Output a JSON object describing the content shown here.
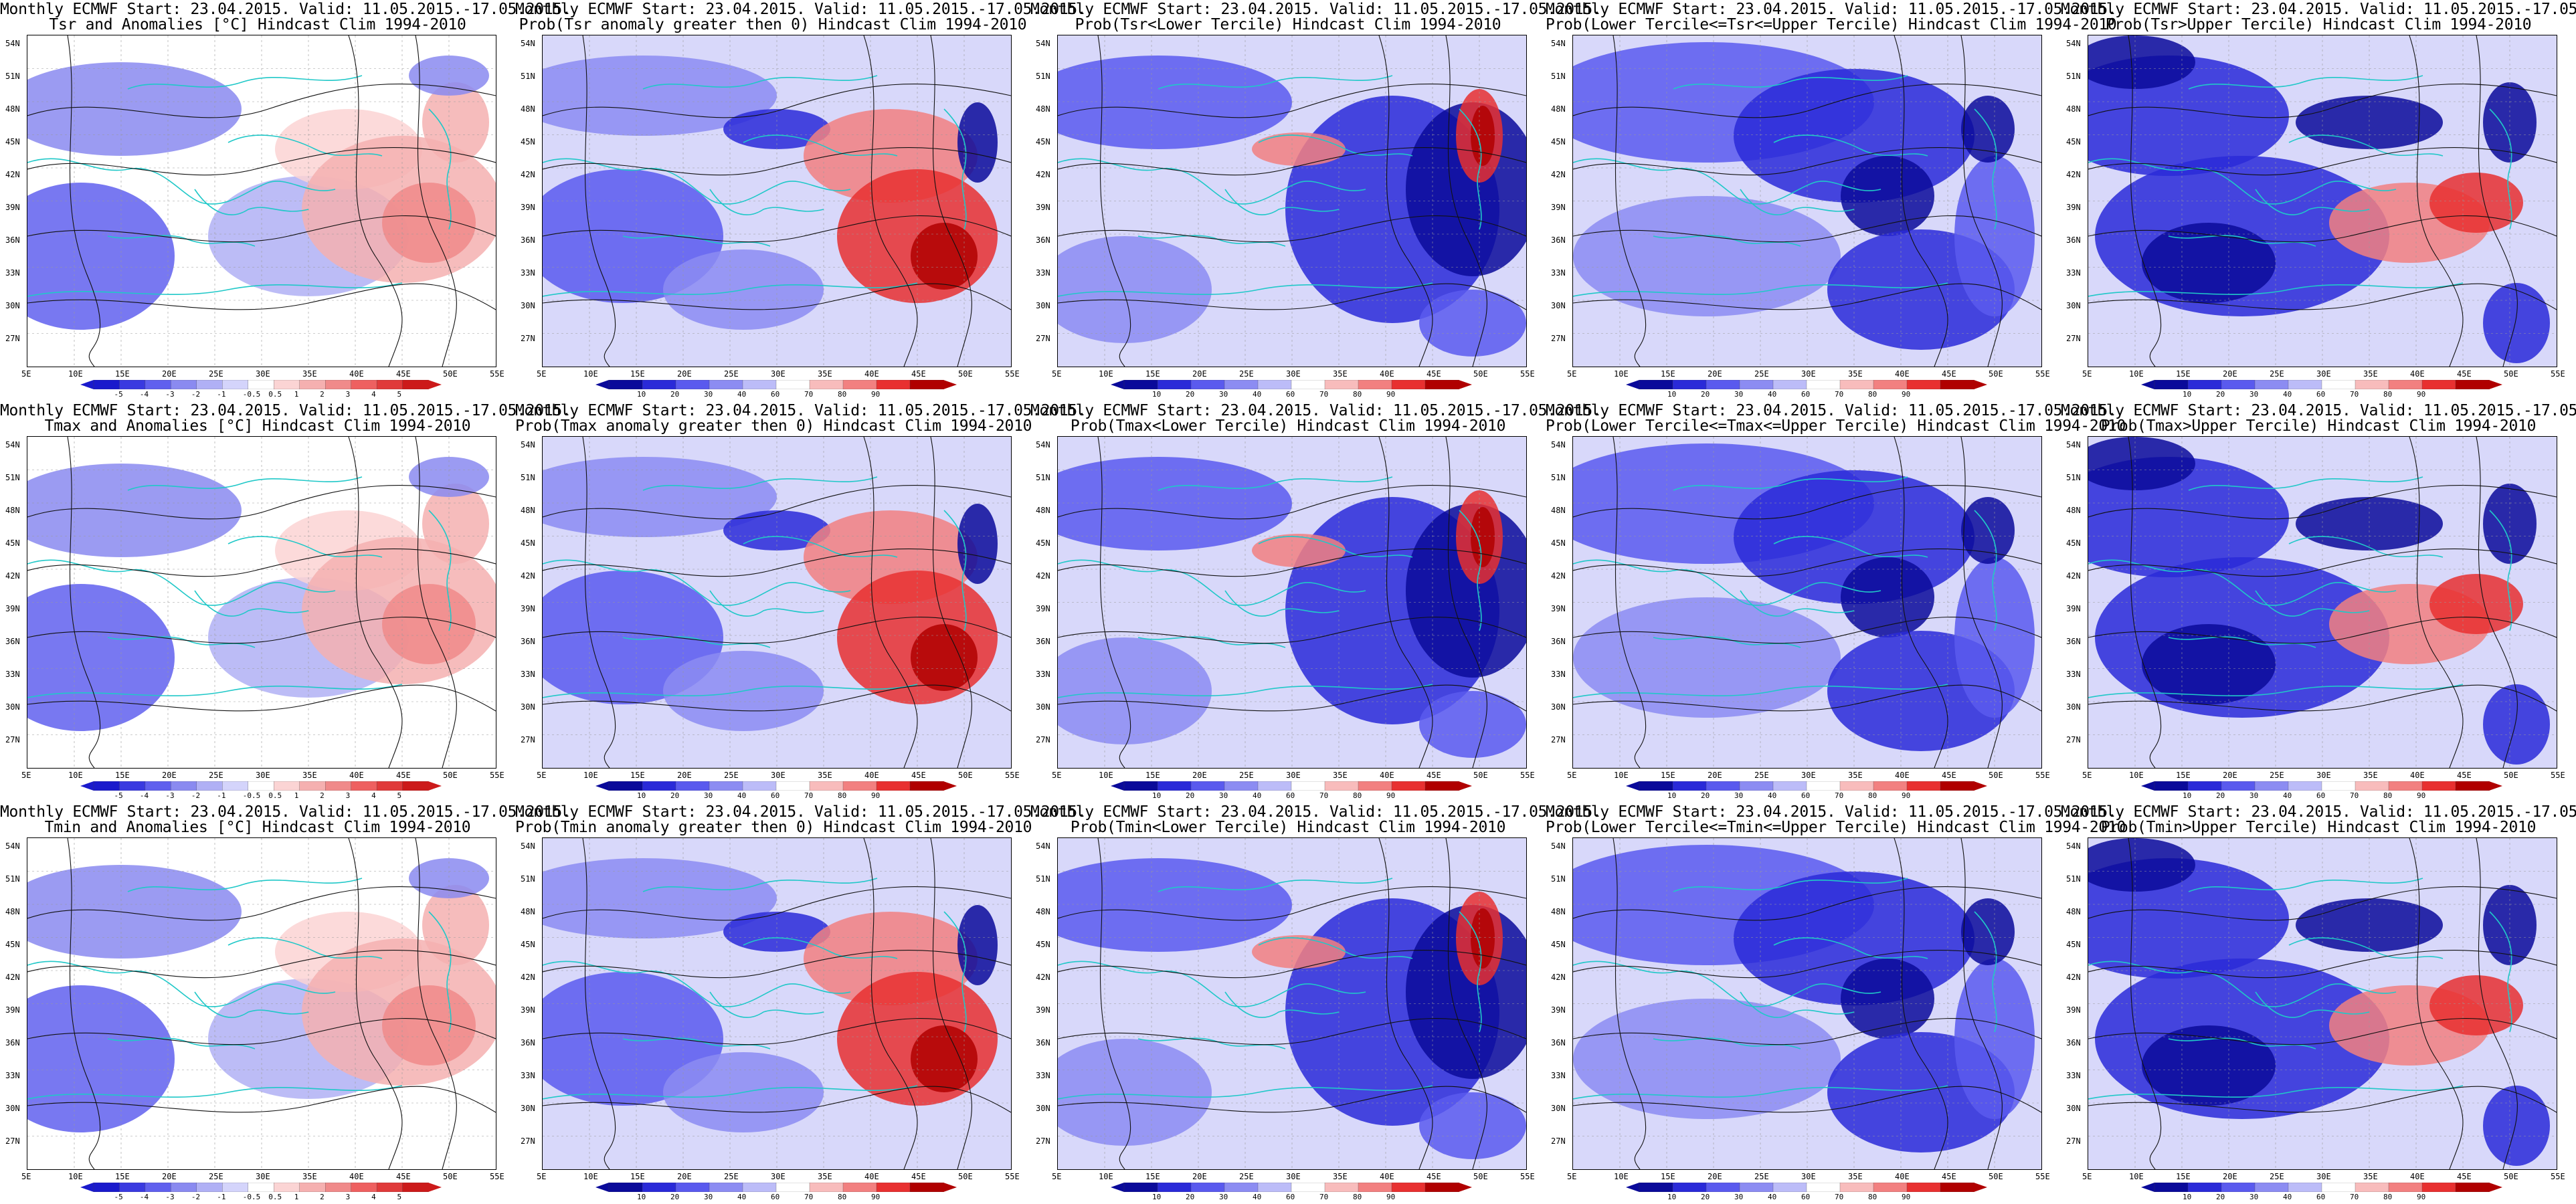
{
  "figure": {
    "title_line1": "Monthly ECMWF Start: 23.04.2015. Valid: 11.05.2015.-17.05.2015.",
    "lat_labels": [
      "54N",
      "51N",
      "48N",
      "45N",
      "42N",
      "39N",
      "36N",
      "33N",
      "30N",
      "27N"
    ],
    "lon_labels": [
      "5E",
      "10E",
      "15E",
      "20E",
      "25E",
      "30E",
      "35E",
      "40E",
      "45E",
      "50E",
      "55E"
    ],
    "colorbars": {
      "anomaly": {
        "labels": [
          "-5",
          "-4",
          "-3",
          "-2",
          "-1",
          "-0.5",
          "0.5",
          "1",
          "2",
          "3",
          "4",
          "5"
        ],
        "colors": [
          "#1a1acc",
          "#3a3ae0",
          "#6060ee",
          "#8a8af0",
          "#b0b0f5",
          "#d4d4fb",
          "#ffffff",
          "#fbd4d4",
          "#f5b0b0",
          "#f08a8a",
          "#ee6060",
          "#e03a3a",
          "#cc1a1a"
        ]
      },
      "probability": {
        "labels": [
          "10",
          "20",
          "30",
          "40",
          "60",
          "70",
          "80",
          "90"
        ],
        "colors": [
          "#0a0a9a",
          "#2a2ad8",
          "#5a5aee",
          "#8c8cf2",
          "#bcbcf8",
          "#ffffff",
          "#f8bcbc",
          "#f28080",
          "#e83030",
          "#b00000"
        ]
      }
    },
    "panels": [
      {
        "title": "Tsr and Anomalies [°C] Hindcast Clim 1994-2010",
        "type": "anomaly"
      },
      {
        "title": "Prob(Tsr anomaly greater then 0) Hindcast Clim 1994-2010",
        "type": "prob_gt0"
      },
      {
        "title": "Prob(Tsr<Lower Tercile) Hindcast Clim 1994-2010",
        "type": "prob_lower"
      },
      {
        "title": "Prob(Lower Tercile<=Tsr<=Upper Tercile) Hindcast Clim 1994-2010",
        "type": "prob_middle"
      },
      {
        "title": "Prob(Tsr>Upper Tercile) Hindcast Clim 1994-2010",
        "type": "prob_upper"
      },
      {
        "title": "Tmax and Anomalies [°C] Hindcast Clim 1994-2010",
        "type": "anomaly"
      },
      {
        "title": "Prob(Tmax anomaly greater then 0) Hindcast Clim 1994-2010",
        "type": "prob_gt0"
      },
      {
        "title": "Prob(Tmax<Lower Tercile) Hindcast Clim 1994-2010",
        "type": "prob_lower"
      },
      {
        "title": "Prob(Lower Tercile<=Tmax<=Upper Tercile) Hindcast Clim 1994-2010",
        "type": "prob_middle"
      },
      {
        "title": "Prob(Tmax>Upper Tercile) Hindcast Clim 1994-2010",
        "type": "prob_upper"
      },
      {
        "title": "Tmin and Anomalies [°C] Hindcast Clim 1994-2010",
        "type": "anomaly"
      },
      {
        "title": "Prob(Tmin anomaly greater then 0) Hindcast Clim 1994-2010",
        "type": "prob_gt0"
      },
      {
        "title": "Prob(Tmin<Lower Tercile) Hindcast Clim 1994-2010",
        "type": "prob_lower"
      },
      {
        "title": "Prob(Lower Tercile<=Tmin<=Upper Tercile) Hindcast Clim 1994-2010",
        "type": "prob_middle"
      },
      {
        "title": "Prob(Tmin>Upper Tercile) Hindcast Clim 1994-2010",
        "type": "prob_upper"
      }
    ]
  }
}
